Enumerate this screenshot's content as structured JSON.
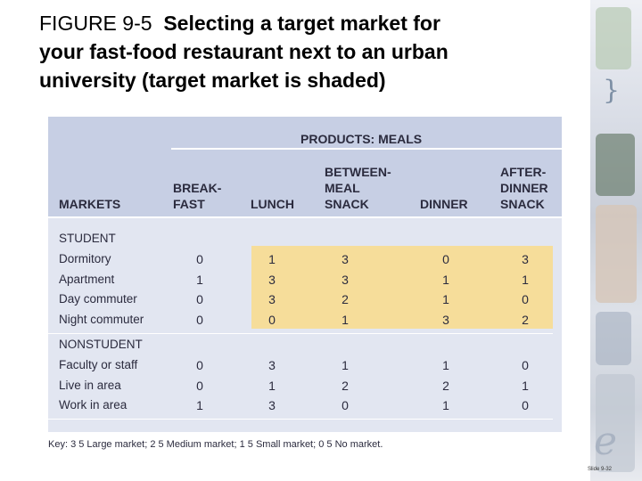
{
  "title": {
    "figure": "FIGURE 9-5",
    "line1": "Selecting a target market for",
    "line2": "your fast-food restaurant next to an urban",
    "line3": "university (target market is shaded)"
  },
  "table": {
    "group_header": "PRODUCTS: MEALS",
    "markets_header": "MARKETS",
    "columns": [
      [
        "BREAK-",
        "FAST"
      ],
      [
        "LUNCH"
      ],
      [
        "BETWEEN-",
        "MEAL",
        "SNACK"
      ],
      [
        "DINNER"
      ],
      [
        "AFTER-",
        "DINNER",
        "SNACK"
      ]
    ],
    "groups": [
      {
        "name": "STUDENT",
        "rows": [
          {
            "label": "Dormitory",
            "values": [
              "0",
              "1",
              "3",
              "0",
              "3"
            ]
          },
          {
            "label": "Apartment",
            "values": [
              "1",
              "3",
              "3",
              "1",
              "1"
            ]
          },
          {
            "label": "Day commuter",
            "values": [
              "0",
              "3",
              "2",
              "1",
              "0"
            ]
          },
          {
            "label": "Night commuter",
            "values": [
              "0",
              "0",
              "1",
              "3",
              "2"
            ]
          }
        ]
      },
      {
        "name": "NONSTUDENT",
        "rows": [
          {
            "label": "Faculty or staff",
            "values": [
              "0",
              "3",
              "1",
              "1",
              "0"
            ]
          },
          {
            "label": "Live in area",
            "values": [
              "0",
              "1",
              "2",
              "2",
              "1"
            ]
          },
          {
            "label": "Work in area",
            "values": [
              "1",
              "3",
              "0",
              "1",
              "0"
            ]
          }
        ]
      }
    ],
    "key": "Key: 3 5 Large market; 2 5 Medium market; 1 5 Small market; 0 5 No market.",
    "shade_color": "#f6dd9a",
    "header_color": "#c7cfe4",
    "body_color": "#e2e6f1"
  },
  "slide_number": "Slide 9-32"
}
